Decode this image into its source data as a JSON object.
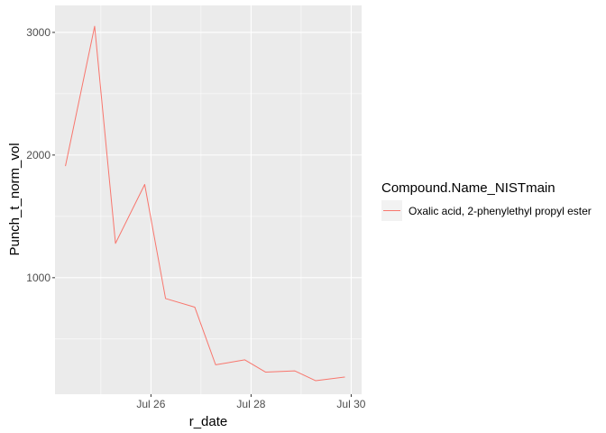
{
  "chart_data": {
    "type": "line",
    "xlabel": "r_date",
    "ylabel": "Punch_t_norm_vol",
    "x_ticks": [
      {
        "value": "2021-07-26",
        "label": "Jul 26"
      },
      {
        "value": "2021-07-28",
        "label": "Jul 28"
      },
      {
        "value": "2021-07-30",
        "label": "Jul 30"
      }
    ],
    "y_ticks": [
      1000,
      2000,
      3000
    ],
    "xlim": [
      "2021-07-24T02:00",
      "2021-07-30T05:00"
    ],
    "ylim": [
      50,
      3220
    ],
    "grid": true,
    "legend": {
      "title": "Compound.Name_NISTmain",
      "position": "right"
    },
    "series": [
      {
        "name": "Oxalic acid, 2-phenylethyl propyl ester",
        "color": "#F8766D",
        "points": [
          {
            "x": "2021-07-24T07:00",
            "y": 1910
          },
          {
            "x": "2021-07-24T21:00",
            "y": 3050
          },
          {
            "x": "2021-07-25T07:00",
            "y": 1280
          },
          {
            "x": "2021-07-25T21:00",
            "y": 1760
          },
          {
            "x": "2021-07-26T07:00",
            "y": 830
          },
          {
            "x": "2021-07-26T21:00",
            "y": 760
          },
          {
            "x": "2021-07-27T07:00",
            "y": 290
          },
          {
            "x": "2021-07-27T21:00",
            "y": 330
          },
          {
            "x": "2021-07-28T07:00",
            "y": 230
          },
          {
            "x": "2021-07-28T21:00",
            "y": 240
          },
          {
            "x": "2021-07-29T07:00",
            "y": 160
          },
          {
            "x": "2021-07-29T21:00",
            "y": 190
          }
        ]
      }
    ]
  }
}
